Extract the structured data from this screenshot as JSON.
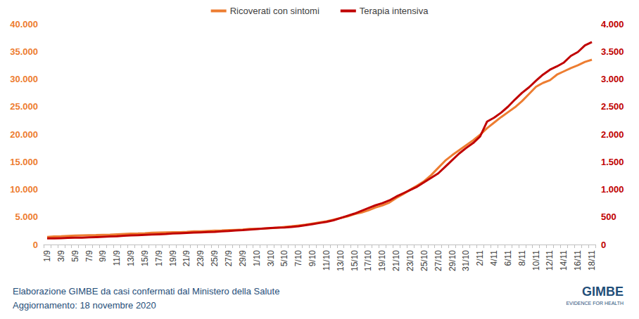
{
  "chart_data": {
    "type": "line",
    "categories": [
      "1/9",
      null,
      "3/9",
      null,
      "5/9",
      null,
      "7/9",
      null,
      "9/9",
      null,
      "11/9",
      null,
      "13/9",
      null,
      "15/9",
      null,
      "17/9",
      null,
      "19/9",
      null,
      "21/9",
      null,
      "23/9",
      null,
      "25/9",
      null,
      "27/9",
      null,
      "29/9",
      null,
      "1/10",
      null,
      "3/10",
      null,
      "5/10",
      null,
      "7/10",
      null,
      "9/10",
      null,
      "11/10",
      null,
      "13/10",
      null,
      "15/10",
      null,
      "17/10",
      null,
      "19/10",
      null,
      "21/10",
      null,
      "23/10",
      null,
      "25/10",
      null,
      "27/10",
      null,
      "29/10",
      null,
      "31/10",
      null,
      "2/11",
      null,
      "4/11",
      null,
      "6/11",
      null,
      "8/11",
      null,
      "10/11",
      null,
      "12/11",
      null,
      "14/11",
      null,
      "16/11",
      null,
      "18/11"
    ],
    "series": [
      {
        "name": "Ricoverati con sintomi",
        "color": "#ED7D31",
        "values": [
          1380,
          1450,
          1500,
          1560,
          1610,
          1650,
          1690,
          1710,
          1760,
          1780,
          1840,
          1900,
          1960,
          2000,
          2050,
          2120,
          2180,
          2200,
          2220,
          2230,
          2280,
          2380,
          2400,
          2460,
          2520,
          2550,
          2600,
          2650,
          2700,
          2850,
          2850,
          2900,
          2950,
          3050,
          3200,
          3300,
          3450,
          3600,
          3800,
          4000,
          4200,
          4500,
          4800,
          5100,
          5500,
          5800,
          6200,
          6700,
          7100,
          7600,
          8450,
          9150,
          9950,
          10700,
          11500,
          12600,
          13900,
          15200,
          16200,
          17100,
          18000,
          18900,
          19900,
          21100,
          22100,
          23100,
          24000,
          24900,
          26000,
          27300,
          28600,
          29300,
          29800,
          30800,
          31400,
          32000,
          32500,
          33100,
          33500
        ]
      },
      {
        "name": "Terapia intensiva",
        "color": "#C00000",
        "axis": "y2",
        "values": [
          110,
          110,
          115,
          120,
          125,
          125,
          130,
          135,
          140,
          145,
          150,
          160,
          165,
          170,
          175,
          180,
          185,
          190,
          200,
          205,
          210,
          215,
          220,
          225,
          230,
          240,
          245,
          255,
          260,
          270,
          280,
          290,
          300,
          305,
          310,
          320,
          330,
          350,
          370,
          390,
          410,
          440,
          480,
          520,
          560,
          610,
          660,
          710,
          750,
          800,
          870,
          930,
          990,
          1050,
          1130,
          1210,
          1290,
          1410,
          1530,
          1650,
          1750,
          1840,
          1960,
          2230,
          2300,
          2390,
          2500,
          2630,
          2750,
          2850,
          2970,
          3080,
          3170,
          3230,
          3300,
          3420,
          3490,
          3610,
          3670
        ]
      }
    ],
    "ylim": [
      0,
      40000
    ],
    "yticks": [
      0,
      {
        "value": 5000,
        "label": "5.000"
      },
      {
        "value": 10000,
        "label": "10.000"
      },
      {
        "value": 15000,
        "label": "15.000"
      },
      {
        "value": 20000,
        "label": "20.000"
      },
      {
        "value": 25000,
        "label": "25.000"
      },
      {
        "value": 30000,
        "label": "30.000"
      },
      {
        "value": 35000,
        "label": "35.000"
      },
      {
        "value": 40000,
        "label": "40.000"
      }
    ],
    "y2lim": [
      0,
      4000
    ],
    "y2ticks": [
      0,
      500,
      {
        "value": 1000,
        "label": "1.000"
      },
      {
        "value": 1500,
        "label": "1.500"
      },
      {
        "value": 2000,
        "label": "2.000"
      },
      {
        "value": 2500,
        "label": "2.500"
      },
      {
        "value": 3000,
        "label": "3.000"
      },
      {
        "value": 3500,
        "label": "3.500"
      },
      {
        "value": 4000,
        "label": "4.000"
      }
    ],
    "grid": false,
    "legend": "top",
    "annotations": [
      "Elaborazione GIMBE da casi confermati dal Ministero della Salute",
      "Aggiornamento: 18 novembre 2020",
      "GIMBE",
      "EVIDENCE FOR HEALTH"
    ]
  }
}
